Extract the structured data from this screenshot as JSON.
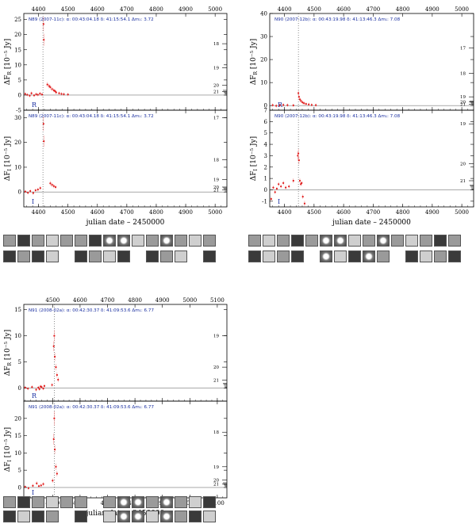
{
  "chart_data": [
    {
      "id": "n89",
      "type": "scatter",
      "x_label": "julian date – 2450000",
      "x_ticks": [
        4400,
        4500,
        4600,
        4700,
        4800,
        4900,
        5000
      ],
      "xlim": [
        4350,
        5040
      ],
      "peak_x": 4415,
      "panels": [
        {
          "band": "R",
          "ylabel_main": "ΔF",
          "ylabel_sub": "R",
          "ylabel_unit": "[10⁻⁵ Jy]",
          "ylim": [
            -5,
            27
          ],
          "y_ticks": [
            -5,
            0,
            5,
            10,
            15,
            20,
            25
          ],
          "header": "N89 (2007-11c):   α: 00:43:04.18  δ: 41:15:54.1   Δm₁: 3.72",
          "mag_ticks": [
            {
              "label": "18",
              "y": 17
            },
            {
              "label": "19",
              "y": 9
            },
            {
              "label": "20",
              "y": 3.2
            },
            {
              "label": "21",
              "y": 1.2
            }
          ],
          "points": [
            [
              4355,
              0.4
            ],
            [
              4362,
              0.1
            ],
            [
              4370,
              -0.2
            ],
            [
              4376,
              0.6
            ],
            [
              4385,
              -0.1
            ],
            [
              4392,
              0.3
            ],
            [
              4398,
              0.1
            ],
            [
              4405,
              0.5
            ],
            [
              4412,
              0.2
            ],
            [
              4417,
              23.5
            ],
            [
              4418,
              18.3
            ],
            [
              4430,
              3.5
            ],
            [
              4436,
              3.0
            ],
            [
              4440,
              2.6
            ],
            [
              4446,
              2.0
            ],
            [
              4452,
              1.6
            ],
            [
              4456,
              1.3
            ],
            [
              4460,
              0.9
            ],
            [
              4470,
              0.6
            ],
            [
              4478,
              0.4
            ],
            [
              4486,
              0.3
            ],
            [
              4500,
              0.2
            ]
          ]
        },
        {
          "band": "I",
          "ylabel_main": "ΔF",
          "ylabel_sub": "I",
          "ylabel_unit": "[10⁻⁵ Jy]",
          "ylim": [
            -6,
            33
          ],
          "y_ticks": [
            0,
            10,
            20,
            30
          ],
          "header": "N89 (2007-11c):   α: 00:43:04.18  δ: 41:15:54.1   Δm₁: 3.72",
          "mag_ticks": [
            {
              "label": "17",
              "y": 30
            },
            {
              "label": "18",
              "y": 13
            },
            {
              "label": "19",
              "y": 5
            },
            {
              "label": "20",
              "y": 2
            },
            {
              "label": "21",
              "y": 0.8
            }
          ],
          "points": [
            [
              4355,
              0.2
            ],
            [
              4364,
              -0.3
            ],
            [
              4372,
              0.4
            ],
            [
              4382,
              -0.4
            ],
            [
              4390,
              0.7
            ],
            [
              4398,
              1.0
            ],
            [
              4406,
              1.6
            ],
            [
              4417,
              27.5
            ],
            [
              4418,
              20.5
            ],
            [
              4440,
              3.5
            ],
            [
              4446,
              2.9
            ],
            [
              4452,
              2.4
            ],
            [
              4458,
              2.0
            ]
          ]
        }
      ]
    },
    {
      "id": "n90",
      "type": "scatter",
      "x_label": "julian date – 2450000",
      "x_ticks": [
        4400,
        4500,
        4600,
        4700,
        4800,
        4900,
        5000
      ],
      "xlim": [
        4350,
        5040
      ],
      "peak_x": 4447,
      "panels": [
        {
          "band": "R",
          "ylabel_main": "ΔF",
          "ylabel_sub": "R",
          "ylabel_unit": "[10⁻⁵ Jy]",
          "ylim": [
            -2,
            40
          ],
          "y_ticks": [
            0,
            10,
            20,
            30,
            40
          ],
          "header": "N90 (2007-12b):   α: 00:43:19.98  δ: 41:13:46.3   Δm₁: 7.08",
          "mag_ticks": [
            {
              "label": "17",
              "y": 25
            },
            {
              "label": "18",
              "y": 14
            },
            {
              "label": "19",
              "y": 3.8
            },
            {
              "label": "20",
              "y": 1.6
            },
            {
              "label": "21",
              "y": 0.6
            }
          ],
          "points": [
            [
              4360,
              0.2
            ],
            [
              4372,
              -0.1
            ],
            [
              4384,
              0.1
            ],
            [
              4396,
              0.3
            ],
            [
              4410,
              0.2
            ],
            [
              4430,
              0.1
            ],
            [
              4447,
              5.4
            ],
            [
              4449,
              3.8
            ],
            [
              4452,
              2.7
            ],
            [
              4456,
              2.0
            ],
            [
              4461,
              1.4
            ],
            [
              4466,
              1.0
            ],
            [
              4473,
              0.7
            ],
            [
              4482,
              0.5
            ],
            [
              4492,
              0.3
            ],
            [
              4506,
              0.2
            ]
          ]
        },
        {
          "band": "I",
          "ylabel_main": "ΔF",
          "ylabel_sub": "I",
          "ylabel_unit": "[10⁻⁵ Jy]",
          "ylim": [
            -1.5,
            7
          ],
          "y_ticks": [
            -1,
            0,
            1,
            2,
            3,
            4,
            5,
            6,
            7
          ],
          "header": "N90 (2007-12b):   α: 00:43:19.98  δ: 41:13:46.3   Δm₁: 7.08",
          "mag_ticks": [
            {
              "label": "19",
              "y": 5.8
            },
            {
              "label": "20",
              "y": 2.3
            },
            {
              "label": "21",
              "y": 0.8
            }
          ],
          "points": [
            [
              4355,
              -0.8
            ],
            [
              4362,
              0.2
            ],
            [
              4368,
              -0.2
            ],
            [
              4374,
              0.1
            ],
            [
              4380,
              0.5
            ],
            [
              4388,
              0.3
            ],
            [
              4396,
              0.6
            ],
            [
              4404,
              0.2
            ],
            [
              4415,
              0.3
            ],
            [
              4430,
              0.8
            ],
            [
              4445,
              3.0
            ],
            [
              4447,
              3.2
            ],
            [
              4449,
              2.6
            ],
            [
              4452,
              0.8
            ],
            [
              4455,
              0.5
            ],
            [
              4458,
              0.6
            ],
            [
              4462,
              -0.6
            ],
            [
              4468,
              -1.2
            ]
          ]
        }
      ]
    },
    {
      "id": "n91",
      "type": "scatter",
      "x_label": "julian date – 2450000",
      "x_ticks": [
        4500,
        4600,
        4700,
        4800,
        4900,
        5000,
        5100
      ],
      "xlim": [
        4395,
        5135
      ],
      "peak_x": 4506,
      "panels": [
        {
          "band": "R",
          "ylabel_main": "ΔF",
          "ylabel_sub": "R",
          "ylabel_unit": "[10⁻⁵ Jy]",
          "ylim": [
            -2.5,
            16
          ],
          "y_ticks": [
            0,
            5,
            10,
            15
          ],
          "header": "N91 (2008-02a):   α: 00:42:30.37  δ: 41:09:53.6   Δm₁: 6.77",
          "mag_ticks": [
            {
              "label": "19",
              "y": 10
            },
            {
              "label": "20",
              "y": 4
            },
            {
              "label": "21",
              "y": 1.5
            }
          ],
          "points": [
            [
              4400,
              0.1
            ],
            [
              4410,
              -0.1
            ],
            [
              4425,
              0.2
            ],
            [
              4440,
              -0.3
            ],
            [
              4448,
              0.1
            ],
            [
              4452,
              -0.2
            ],
            [
              4456,
              0.3
            ],
            [
              4460,
              0.2
            ],
            [
              4466,
              -0.1
            ],
            [
              4470,
              0.4
            ],
            [
              4498,
              0.6
            ],
            [
              4504,
              8.0
            ],
            [
              4506,
              10.0
            ],
            [
              4508,
              6.0
            ],
            [
              4512,
              4.0
            ],
            [
              4516,
              2.5
            ],
            [
              4520,
              1.6
            ]
          ]
        },
        {
          "band": "I",
          "ylabel_main": "ΔF",
          "ylabel_sub": "I",
          "ylabel_unit": "[10⁻⁵ Jy]",
          "ylim": [
            -3,
            25
          ],
          "y_ticks": [
            0,
            5,
            10,
            15,
            20
          ],
          "header": "N91 (2008-02a):   α: 00:42:30.37  δ: 41:09:53.6   Δm₁: 6.77",
          "mag_ticks": [
            {
              "label": "18",
              "y": 16
            },
            {
              "label": "19",
              "y": 6
            },
            {
              "label": "20",
              "y": 2.2
            },
            {
              "label": "21",
              "y": 1
            }
          ],
          "points": [
            [
              4400,
              0.2
            ],
            [
              4412,
              -0.2
            ],
            [
              4428,
              0.5
            ],
            [
              4442,
              1.2
            ],
            [
              4450,
              0.4
            ],
            [
              4458,
              0.6
            ],
            [
              4466,
              1.0
            ],
            [
              4500,
              2.0
            ],
            [
              4504,
              14.0
            ],
            [
              4506,
              20.0
            ],
            [
              4508,
              11.0
            ],
            [
              4512,
              6.0
            ],
            [
              4516,
              4.0
            ]
          ]
        }
      ]
    }
  ]
}
